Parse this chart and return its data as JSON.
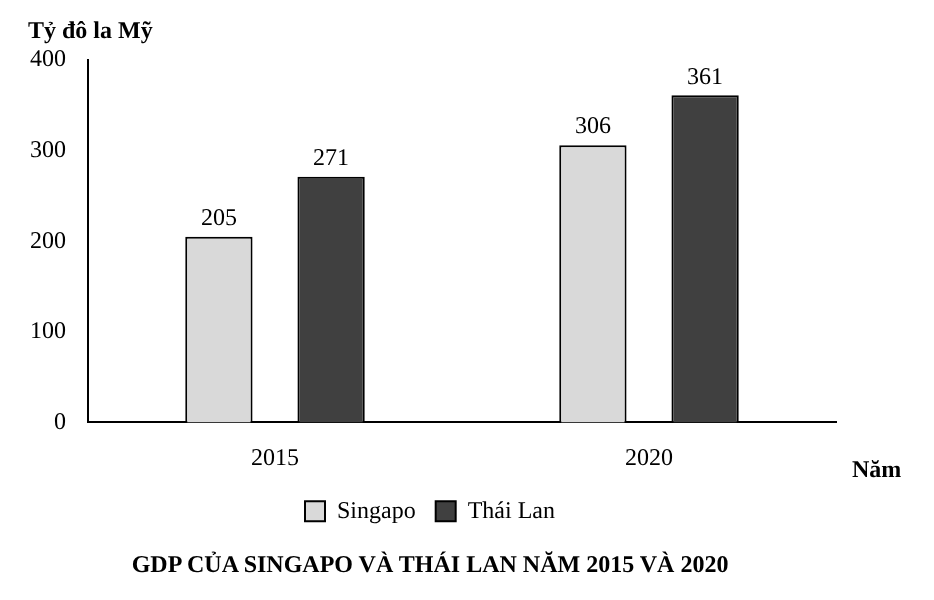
{
  "chart_data": {
    "type": "bar",
    "title": "GDP CỦA SINGAPO VÀ THÁI LAN NĂM 2015 VÀ 2020",
    "ylabel": "Tỷ đô la Mỹ",
    "xlabel": "Năm",
    "categories": [
      "2015",
      "2020"
    ],
    "series": [
      {
        "name": "Singapo",
        "color": "#d9d9d9",
        "values": [
          205,
          306
        ]
      },
      {
        "name": "Thái Lan",
        "color": "#404040",
        "values": [
          271,
          361
        ]
      }
    ],
    "ylim": [
      0,
      400
    ],
    "yticks": [
      0,
      100,
      200,
      300,
      400
    ],
    "data_labels": true,
    "legend": "bottom",
    "grid": false
  }
}
